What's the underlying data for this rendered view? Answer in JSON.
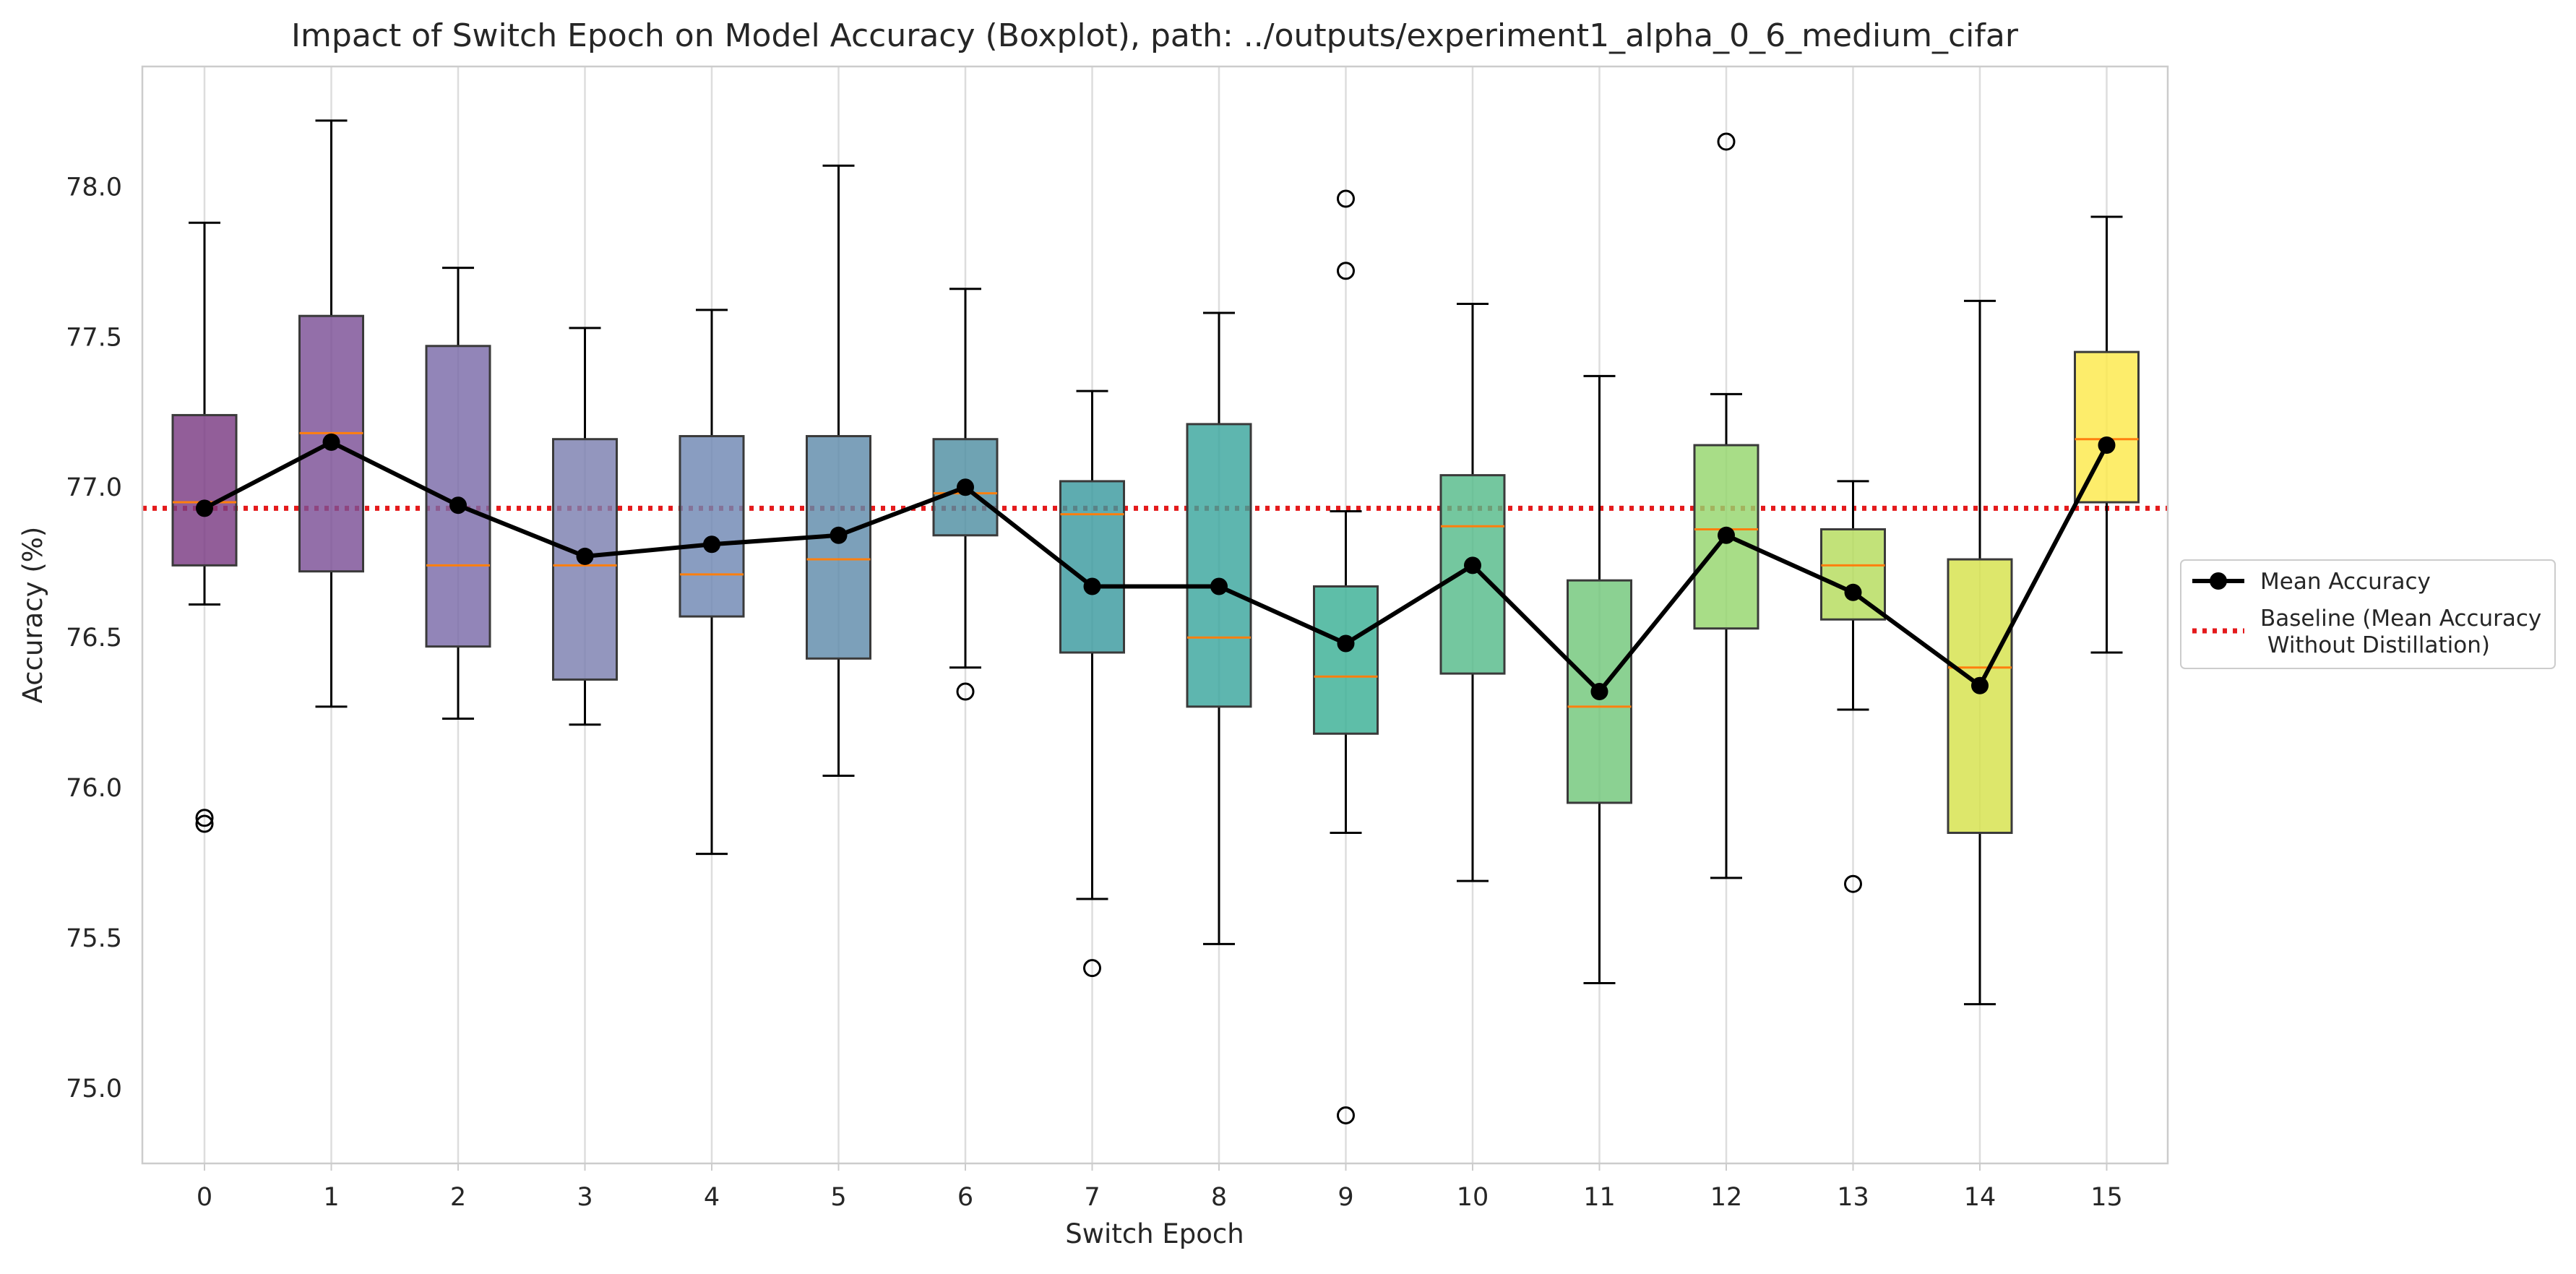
{
  "chart_data": {
    "type": "boxplot",
    "title": "Impact of Switch Epoch on Model Accuracy (Boxplot), path: ../outputs/experiment1_alpha_0_6_medium_cifar",
    "xlabel": "Switch Epoch",
    "ylabel": "Accuracy (%)",
    "ylim": [
      74.75,
      78.4
    ],
    "yticks": [
      75.0,
      75.5,
      76.0,
      76.5,
      77.0,
      77.5,
      78.0
    ],
    "ytick_labels": [
      "75.0",
      "75.5",
      "76.0",
      "76.5",
      "77.0",
      "77.5",
      "78.0"
    ],
    "grid": "vertical",
    "legend_position": "center-right-outside",
    "baseline": {
      "name": "Baseline (Mean Accuracy Without Distillation)",
      "legend_lines": [
        "Baseline (Mean Accuracy",
        " Without Distillation)"
      ],
      "value": 76.93,
      "color": "#e41a1c",
      "style": "dotted"
    },
    "mean_series": {
      "name": "Mean Accuracy",
      "color": "#000000"
    },
    "median_color": "#ff7f0e",
    "boxes": [
      {
        "label": "0",
        "whislo": 76.61,
        "q1": 76.74,
        "median": 76.95,
        "q3": 77.24,
        "whishi": 77.88,
        "mean": 76.93,
        "outliers": [
          75.9,
          75.88
        ],
        "color": "#7a3a82"
      },
      {
        "label": "1",
        "whislo": 76.27,
        "q1": 76.72,
        "median": 77.18,
        "q3": 77.57,
        "whishi": 78.22,
        "mean": 77.15,
        "outliers": [],
        "color": "#7b4f96"
      },
      {
        "label": "2",
        "whislo": 76.23,
        "q1": 76.47,
        "median": 76.74,
        "q3": 77.47,
        "whishi": 77.73,
        "mean": 76.94,
        "outliers": [],
        "color": "#7a6aa8"
      },
      {
        "label": "3",
        "whislo": 76.21,
        "q1": 76.36,
        "median": 76.74,
        "q3": 77.16,
        "whishi": 77.53,
        "mean": 76.77,
        "outliers": [],
        "color": "#7b7fb0"
      },
      {
        "label": "4",
        "whislo": 75.78,
        "q1": 76.57,
        "median": 76.71,
        "q3": 77.17,
        "whishi": 77.59,
        "mean": 76.81,
        "outliers": [],
        "color": "#6f88b3"
      },
      {
        "label": "5",
        "whislo": 76.04,
        "q1": 76.43,
        "median": 76.76,
        "q3": 77.17,
        "whishi": 78.07,
        "mean": 76.84,
        "outliers": [],
        "color": "#5f8bab"
      },
      {
        "label": "6",
        "whislo": 76.4,
        "q1": 76.84,
        "median": 76.98,
        "q3": 77.16,
        "whishi": 77.66,
        "mean": 77.0,
        "outliers": [
          76.32
        ],
        "color": "#4f8fa2"
      },
      {
        "label": "7",
        "whislo": 75.63,
        "q1": 76.45,
        "median": 76.91,
        "q3": 77.02,
        "whishi": 77.32,
        "mean": 76.67,
        "outliers": [
          75.4
        ],
        "color": "#3a9a9f"
      },
      {
        "label": "8",
        "whislo": 75.48,
        "q1": 76.27,
        "median": 76.5,
        "q3": 77.21,
        "whishi": 77.58,
        "mean": 76.67,
        "outliers": [],
        "color": "#3aa69d"
      },
      {
        "label": "9",
        "whislo": 75.85,
        "q1": 76.18,
        "median": 76.37,
        "q3": 76.67,
        "whishi": 76.92,
        "mean": 76.48,
        "outliers": [
          77.96,
          77.72,
          74.91
        ],
        "color": "#3bb095"
      },
      {
        "label": "10",
        "whislo": 75.69,
        "q1": 76.38,
        "median": 76.87,
        "q3": 77.04,
        "whishi": 77.61,
        "mean": 76.74,
        "outliers": [],
        "color": "#55bb8a"
      },
      {
        "label": "11",
        "whislo": 75.35,
        "q1": 75.95,
        "median": 76.27,
        "q3": 76.69,
        "whishi": 77.37,
        "mean": 76.32,
        "outliers": [],
        "color": "#72c77a"
      },
      {
        "label": "12",
        "whislo": 75.7,
        "q1": 76.53,
        "median": 76.86,
        "q3": 77.14,
        "whishi": 77.31,
        "mean": 76.84,
        "outliers": [
          78.15
        ],
        "color": "#95d56c"
      },
      {
        "label": "13",
        "whislo": 76.26,
        "q1": 76.56,
        "median": 76.74,
        "q3": 76.86,
        "whishi": 77.02,
        "mean": 76.65,
        "outliers": [
          75.68
        ],
        "color": "#b5dc5c"
      },
      {
        "label": "14",
        "whislo": 75.28,
        "q1": 75.85,
        "median": 76.4,
        "q3": 76.76,
        "whishi": 77.62,
        "mean": 76.34,
        "outliers": [],
        "color": "#d6e24a"
      },
      {
        "label": "15",
        "whislo": 76.45,
        "q1": 76.95,
        "median": 77.16,
        "q3": 77.45,
        "whishi": 77.9,
        "mean": 77.14,
        "outliers": [],
        "color": "#fde94a"
      }
    ]
  }
}
